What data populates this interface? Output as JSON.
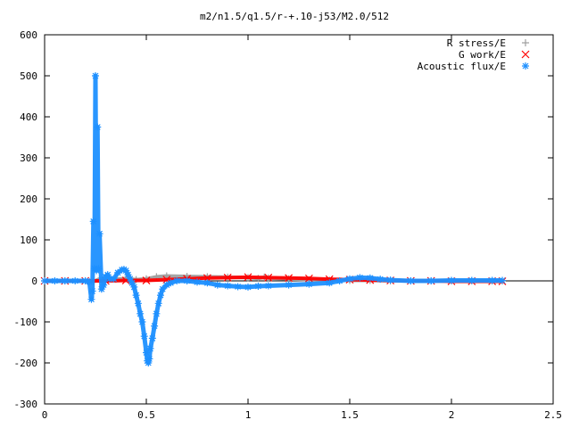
{
  "chart_data": {
    "type": "scatter",
    "title": "m2/n1.5/q1.5/r-+.10-j53/M2.0/512",
    "xlabel": "",
    "ylabel": "",
    "xlim": [
      0,
      2.5
    ],
    "ylim": [
      -300,
      600
    ],
    "x_ticks": [
      "0",
      "0.5",
      "1",
      "1.5",
      "2",
      "2.5"
    ],
    "y_ticks": [
      "600",
      "500",
      "400",
      "300",
      "200",
      "100",
      "0",
      "-100",
      "-200",
      "-300"
    ],
    "grid": false,
    "legend_position": "top-right",
    "series": [
      {
        "name": "R stress/E",
        "color": "#a0a0a0",
        "marker": "plus",
        "x": [
          0.0,
          0.1,
          0.2,
          0.24,
          0.27,
          0.3,
          0.35,
          0.4,
          0.45,
          0.5,
          0.55,
          0.6,
          0.7,
          0.8,
          0.9,
          1.0,
          1.05,
          1.08,
          1.1,
          1.2,
          1.3,
          1.4,
          1.5,
          1.6,
          1.7,
          1.8,
          1.9,
          2.0,
          2.1,
          2.2,
          2.25
        ],
        "y": [
          0,
          0,
          0,
          -2,
          5,
          3,
          4,
          6,
          3,
          5,
          10,
          12,
          11,
          10,
          9,
          8,
          6,
          9,
          7,
          5,
          3,
          2,
          1,
          1,
          0,
          0,
          0,
          0,
          0,
          0,
          0
        ]
      },
      {
        "name": "G work/E",
        "color": "#ff0000",
        "marker": "cross",
        "x": [
          0.0,
          0.1,
          0.2,
          0.3,
          0.4,
          0.5,
          0.6,
          0.7,
          0.8,
          0.9,
          1.0,
          1.1,
          1.2,
          1.3,
          1.4,
          1.5,
          1.6,
          1.7,
          1.8,
          1.9,
          2.0,
          2.1,
          2.2,
          2.25
        ],
        "y": [
          0,
          0,
          0,
          0,
          1,
          1,
          3,
          5,
          7,
          8,
          9,
          8,
          7,
          6,
          4,
          3,
          2,
          1,
          0,
          0,
          -1,
          -1,
          -1,
          -1
        ]
      },
      {
        "name": "Acoustic flux/E",
        "color": "#1e90ff",
        "marker": "star",
        "x": [
          0.0,
          0.05,
          0.1,
          0.15,
          0.2,
          0.22,
          0.23,
          0.235,
          0.24,
          0.245,
          0.25,
          0.255,
          0.26,
          0.265,
          0.27,
          0.28,
          0.29,
          0.3,
          0.31,
          0.32,
          0.34,
          0.36,
          0.38,
          0.39,
          0.4,
          0.41,
          0.42,
          0.43,
          0.44,
          0.45,
          0.46,
          0.47,
          0.48,
          0.49,
          0.5,
          0.505,
          0.51,
          0.515,
          0.52,
          0.53,
          0.54,
          0.55,
          0.56,
          0.57,
          0.58,
          0.6,
          0.62,
          0.65,
          0.7,
          0.75,
          0.8,
          0.85,
          0.9,
          0.95,
          1.0,
          1.05,
          1.1,
          1.2,
          1.3,
          1.4,
          1.45,
          1.5,
          1.55,
          1.6,
          1.65,
          1.7,
          1.8,
          1.9,
          2.0,
          2.1,
          2.2,
          2.25
        ],
        "y": [
          0,
          0,
          0,
          0,
          0,
          -2,
          -45,
          -25,
          145,
          30,
          500,
          25,
          375,
          30,
          115,
          -20,
          -10,
          10,
          15,
          5,
          5,
          20,
          27,
          28,
          25,
          15,
          5,
          -5,
          -15,
          -35,
          -55,
          -80,
          -100,
          -135,
          -175,
          -195,
          -200,
          -190,
          -165,
          -140,
          -110,
          -80,
          -55,
          -35,
          -20,
          -10,
          -5,
          0,
          0,
          -3,
          -5,
          -10,
          -12,
          -14,
          -15,
          -13,
          -12,
          -10,
          -8,
          -5,
          0,
          5,
          8,
          7,
          4,
          2,
          0,
          0,
          1,
          1,
          1,
          1
        ]
      }
    ]
  }
}
